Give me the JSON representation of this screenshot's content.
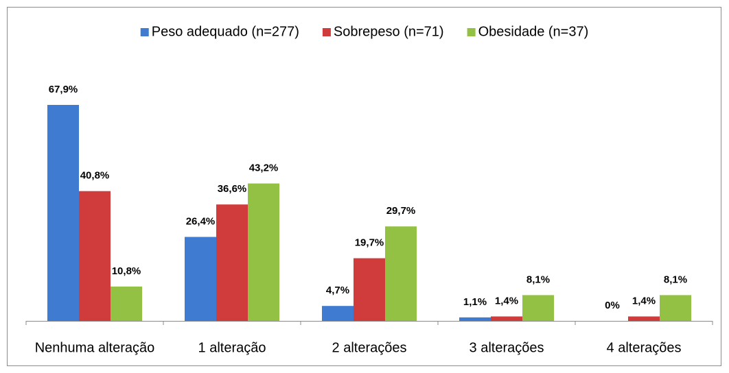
{
  "chart_data": {
    "type": "bar",
    "categories": [
      "Nenhuma alteração",
      "1 alteração",
      "2 alterações",
      "3 alterações",
      "4 alterações"
    ],
    "series": [
      {
        "name": "Peso adequado (n=277)",
        "color": "#3f7bd0",
        "values": [
          67.9,
          26.4,
          4.7,
          1.1,
          0
        ],
        "value_labels": [
          "67,9%",
          "26,4%",
          "4,7%",
          "1,1%",
          "0%"
        ]
      },
      {
        "name": "Sobrepeso (n=71)",
        "color": "#d03b3b",
        "values": [
          40.8,
          36.6,
          19.7,
          1.4,
          1.4
        ],
        "value_labels": [
          "40,8%",
          "36,6%",
          "19,7%",
          "1,4%",
          "1,4%"
        ]
      },
      {
        "name": "Obesidade (n=37)",
        "color": "#92c143",
        "values": [
          10.8,
          43.2,
          29.7,
          8.1,
          8.1
        ],
        "value_labels": [
          "10,8%",
          "43,2%",
          "29,7%",
          "8,1%",
          "8,1%"
        ]
      }
    ],
    "legend": "top"
  }
}
